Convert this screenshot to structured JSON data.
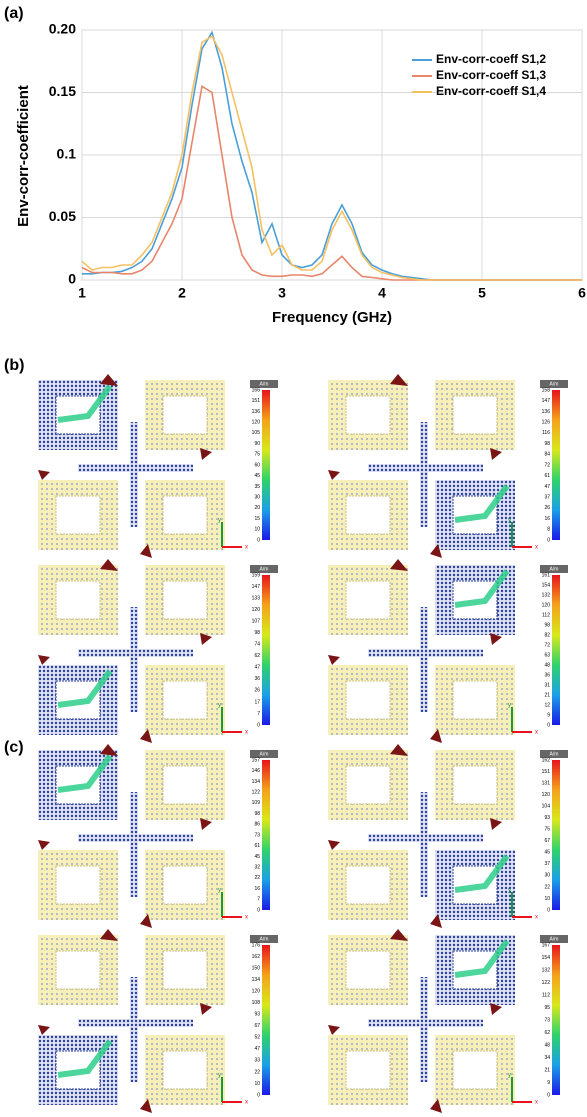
{
  "chart_data": {
    "type": "line",
    "x_label": "Frequency (GHz)",
    "y_label": "Env-corr-coefficient",
    "x": [
      1,
      1.1,
      1.2,
      1.3,
      1.4,
      1.5,
      1.6,
      1.7,
      1.8,
      1.9,
      2,
      2.1,
      2.2,
      2.3,
      2.4,
      2.5,
      2.6,
      2.7,
      2.8,
      2.9,
      3,
      3.1,
      3.2,
      3.3,
      3.4,
      3.5,
      3.6,
      3.7,
      3.8,
      3.9,
      4,
      4.1,
      4.2,
      4.3,
      4.4,
      4.5,
      4.6,
      4.7,
      4.8,
      4.9,
      5,
      5.1,
      5.2,
      5.3,
      5.4,
      5.5,
      5.6,
      5.7,
      5.8,
      5.9,
      6
    ],
    "series": [
      {
        "name": "Env-corr-coeff S1,2",
        "color": "#4a9fd8",
        "values": [
          0.005,
          0.005,
          0.006,
          0.006,
          0.007,
          0.01,
          0.015,
          0.025,
          0.045,
          0.065,
          0.09,
          0.14,
          0.185,
          0.198,
          0.17,
          0.125,
          0.095,
          0.07,
          0.03,
          0.045,
          0.02,
          0.012,
          0.01,
          0.012,
          0.02,
          0.045,
          0.06,
          0.045,
          0.022,
          0.012,
          0.008,
          0.005,
          0.003,
          0.002,
          0.001,
          0,
          0,
          0,
          0,
          0,
          0,
          0,
          0,
          0,
          0,
          0,
          0,
          0,
          0,
          0,
          0
        ]
      },
      {
        "name": "Env-corr-coeff S1,3",
        "color": "#e8856b",
        "values": [
          0.01,
          0.006,
          0.006,
          0.006,
          0.005,
          0.005,
          0.008,
          0.015,
          0.03,
          0.045,
          0.065,
          0.11,
          0.155,
          0.15,
          0.1,
          0.05,
          0.02,
          0.008,
          0.004,
          0.003,
          0.003,
          0.004,
          0.004,
          0.003,
          0.005,
          0.012,
          0.019,
          0.01,
          0.003,
          0.002,
          0.001,
          0,
          0,
          0,
          0,
          0,
          0,
          0,
          0,
          0,
          0,
          0,
          0,
          0,
          0,
          0,
          0,
          0,
          0,
          0,
          0
        ]
      },
      {
        "name": "Env-corr-coeff S1,4",
        "color": "#f5c060",
        "values": [
          0.015,
          0.008,
          0.01,
          0.01,
          0.012,
          0.012,
          0.02,
          0.03,
          0.05,
          0.07,
          0.1,
          0.15,
          0.19,
          0.195,
          0.18,
          0.15,
          0.12,
          0.09,
          0.04,
          0.02,
          0.028,
          0.012,
          0.008,
          0.008,
          0.015,
          0.04,
          0.055,
          0.04,
          0.02,
          0.01,
          0.006,
          0.004,
          0.002,
          0.001,
          0,
          0,
          0,
          0,
          0,
          0,
          0,
          0,
          0,
          0,
          0,
          0,
          0,
          0,
          0,
          0,
          0
        ]
      }
    ],
    "xlim": [
      1,
      6
    ],
    "xticks": [
      1,
      2,
      3,
      4,
      5,
      6
    ],
    "ylim": [
      0,
      0.2
    ],
    "yticks": [
      0,
      0.05,
      0.1,
      0.15,
      {
        "value": 0.2,
        "label": "0.20"
      }
    ],
    "grid": true,
    "legend": "upper right"
  },
  "panel_labels": [
    "(a)",
    "(b)",
    "(c)"
  ],
  "triad_labels": {
    "y": "y",
    "x": "x"
  },
  "field_plots": [
    {
      "unit": "A/m",
      "colorbar_ticks": [
        166,
        151,
        136,
        120,
        105,
        90,
        75,
        60,
        45,
        35,
        30,
        20,
        15,
        10,
        0
      ]
    },
    {
      "unit": "A/m",
      "colorbar_ticks": [
        158,
        147,
        136,
        126,
        116,
        98,
        84,
        72,
        61,
        47,
        37,
        26,
        16,
        8,
        0
      ]
    },
    {
      "unit": "A/m",
      "colorbar_ticks": [
        159,
        147,
        133,
        120,
        107,
        98,
        74,
        62,
        47,
        36,
        26,
        17,
        7,
        0
      ]
    },
    {
      "unit": "A/m",
      "colorbar_ticks": [
        161,
        154,
        132,
        120,
        112,
        98,
        82,
        72,
        63,
        48,
        36,
        31,
        21,
        12,
        9,
        0
      ]
    },
    {
      "unit": "A/m",
      "colorbar_ticks": [
        157,
        146,
        134,
        122,
        109,
        98,
        86,
        73,
        61,
        45,
        32,
        22,
        16,
        7,
        0
      ]
    },
    {
      "unit": "A/m",
      "colorbar_ticks": [
        162,
        151,
        131,
        120,
        104,
        93,
        75,
        67,
        45,
        37,
        30,
        22,
        10,
        0
      ]
    },
    {
      "unit": "A/m",
      "colorbar_ticks": [
        176,
        162,
        150,
        134,
        120,
        108,
        93,
        67,
        52,
        47,
        33,
        22,
        10,
        0
      ]
    },
    {
      "unit": "A/m",
      "colorbar_ticks": [
        167,
        154,
        132,
        122,
        112,
        95,
        73,
        62,
        48,
        34,
        21,
        9,
        0
      ]
    }
  ]
}
